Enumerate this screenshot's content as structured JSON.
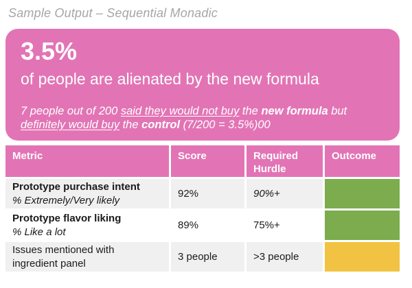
{
  "slide": {
    "title": "Sample Output – Sequential Monadic"
  },
  "banner": {
    "stat": "3.5%",
    "subtitle": "of people are alienated by the new formula",
    "footnote_segments": [
      {
        "text": "7 people out of 200 ",
        "style": "plain"
      },
      {
        "text": "said they would not buy",
        "style": "underline"
      },
      {
        "text": " the ",
        "style": "plain"
      },
      {
        "text": "new formula",
        "style": "bold"
      },
      {
        "text": " but",
        "style": "plain"
      },
      {
        "text": "definitely would buy",
        "style": "underline"
      },
      {
        "text": " the ",
        "style": "plain"
      },
      {
        "text": "control",
        "style": "bold"
      },
      {
        "text": " (7/200 = 3.5%)00",
        "style": "plain"
      }
    ]
  },
  "table": {
    "headers": [
      "Metric",
      "Score",
      "Required Hurdle",
      "Outcome"
    ],
    "rows": [
      {
        "metric": "Prototype purchase intent",
        "metric_detail": "% Extremely/Very likely",
        "score": "92%",
        "required_hurdle": "90%+",
        "outcome": "pass",
        "outcome_color": "#7CAC4E"
      },
      {
        "metric": "Prototype flavor liking",
        "metric_detail": "% Like a lot",
        "score": "89%",
        "required_hurdle": "75%+",
        "outcome": "pass",
        "outcome_color": "#7CAC4E"
      },
      {
        "metric": "Issues mentioned with ingredient panel",
        "metric_detail": "",
        "score": "3 people",
        "required_hurdle": ">3 people",
        "outcome": "warning",
        "outcome_color": "#F2C342"
      }
    ]
  },
  "colors": {
    "brand_pink": "#E274B5",
    "pass_green": "#7CAC4E",
    "warning_yellow": "#F2C342",
    "alt_row_gray": "#F0F0F0"
  }
}
